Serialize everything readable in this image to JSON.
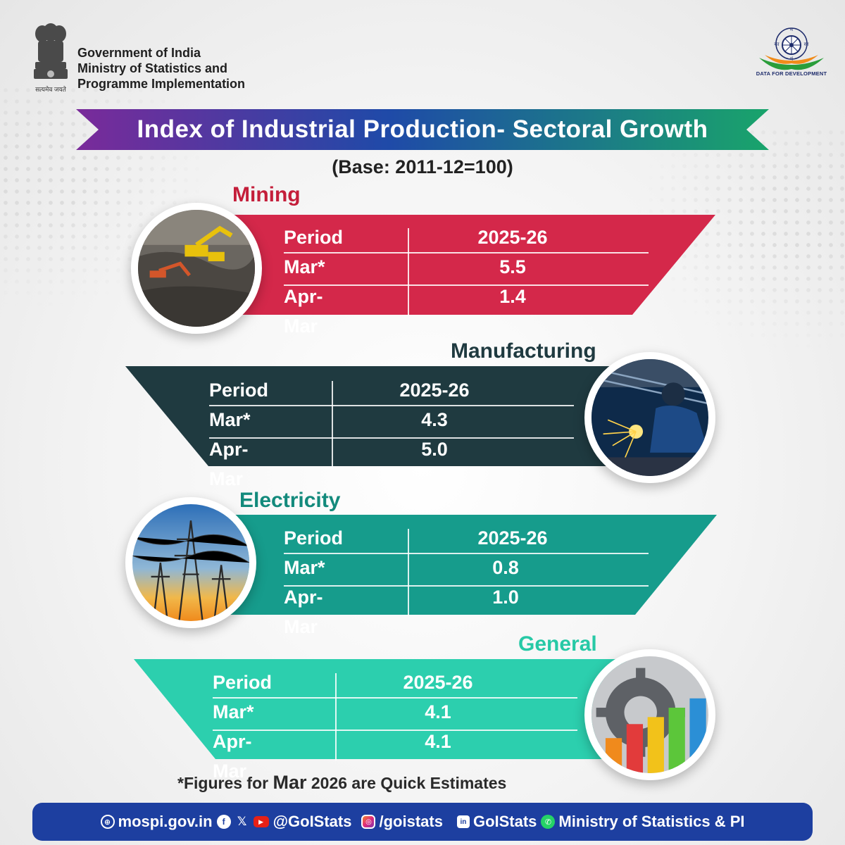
{
  "header": {
    "emblem_caption": "सत्यमेव जयते",
    "gov_lines": [
      "Government of India",
      "Ministry of Statistics and",
      "Programme Implementation"
    ],
    "logo_caption": "DATA FOR DEVELOPMENT",
    "logo_letters": [
      "म",
      "सा",
      "का",
      "मं"
    ]
  },
  "title": "Index of Industrial Production- Sectoral Growth",
  "base": "(Base: 2011-12=100)",
  "sectors": [
    {
      "name": "Mining",
      "header": [
        "Period",
        "2025-26"
      ],
      "rows": [
        [
          "Mar*",
          "5.5"
        ],
        [
          "Apr-Mar",
          "1.4"
        ]
      ],
      "color": "#d4284a",
      "title_color": "#c41e3a",
      "image": "mining-excavator-image"
    },
    {
      "name": "Manufacturing",
      "header": [
        "Period",
        "2025-26"
      ],
      "rows": [
        [
          "Mar*",
          "4.3"
        ],
        [
          "Apr-Mar",
          "5.0"
        ]
      ],
      "color": "#1f3a40",
      "title_color": "#1f3a40",
      "image": "welding-worker-image"
    },
    {
      "name": "Electricity",
      "header": [
        "Period",
        "2025-26"
      ],
      "rows": [
        [
          "Mar*",
          "0.8"
        ],
        [
          "Apr-Mar",
          "1.0"
        ]
      ],
      "color": "#169c8c",
      "title_color": "#138a7c",
      "image": "power-pylons-image"
    },
    {
      "name": "General",
      "header": [
        "Period",
        "2025-26"
      ],
      "rows": [
        [
          "Mar*",
          "4.1"
        ],
        [
          "Apr-Mar",
          "4.1"
        ]
      ],
      "color": "#2ccfae",
      "title_color": "#27c9a6",
      "image": "gear-bar-chart-image"
    }
  ],
  "footnote": {
    "prefix": "*Figures for ",
    "month": "Mar",
    "suffix": " 2026 are Quick Estimates"
  },
  "footer": {
    "website": "mospi.gov.in",
    "handle": "@GoIStats",
    "instagram": "/goistats",
    "linkedin": "GoIStats",
    "whatsapp": "Ministry of Statistics & PI",
    "icons": [
      "globe-icon",
      "facebook-icon",
      "x-icon",
      "youtube-icon",
      "instagram-icon",
      "linkedin-icon",
      "whatsapp-icon"
    ]
  },
  "colors": {
    "banner_start": "#7a2a9a",
    "banner_mid": "#1f4aa8",
    "banner_end": "#19a46b",
    "footer_bg": "#1d3fa0"
  }
}
